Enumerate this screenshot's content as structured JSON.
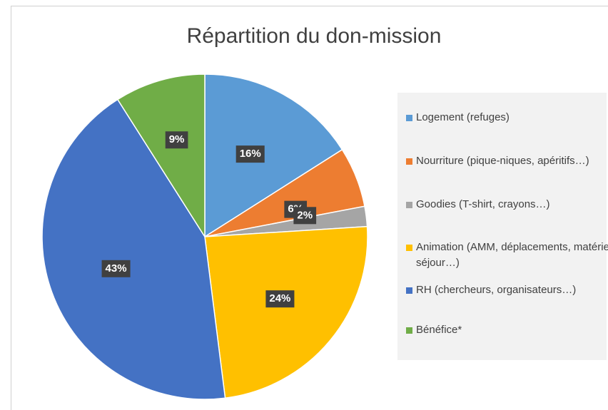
{
  "chart_data": {
    "type": "pie",
    "title": "Répartition du don-mission",
    "categories": [
      "Logement (refuges)",
      "Nourriture (pique-niques, apéritifs…)",
      "Goodies (T-shirt, crayons…)",
      "Animation (AMM, déplacements, matériel séjour…)",
      "RH (chercheurs, organisateurs…)",
      "Bénéfice*"
    ],
    "values": [
      16,
      6,
      2,
      24,
      43,
      9
    ],
    "value_labels": [
      "16%",
      "6%",
      "2%",
      "24%",
      "43%",
      "9%"
    ],
    "colors": [
      "#5b9bd5",
      "#ed7d31",
      "#a5a5a5",
      "#ffc000",
      "#4472c4",
      "#70ad47"
    ],
    "legend": "right"
  }
}
